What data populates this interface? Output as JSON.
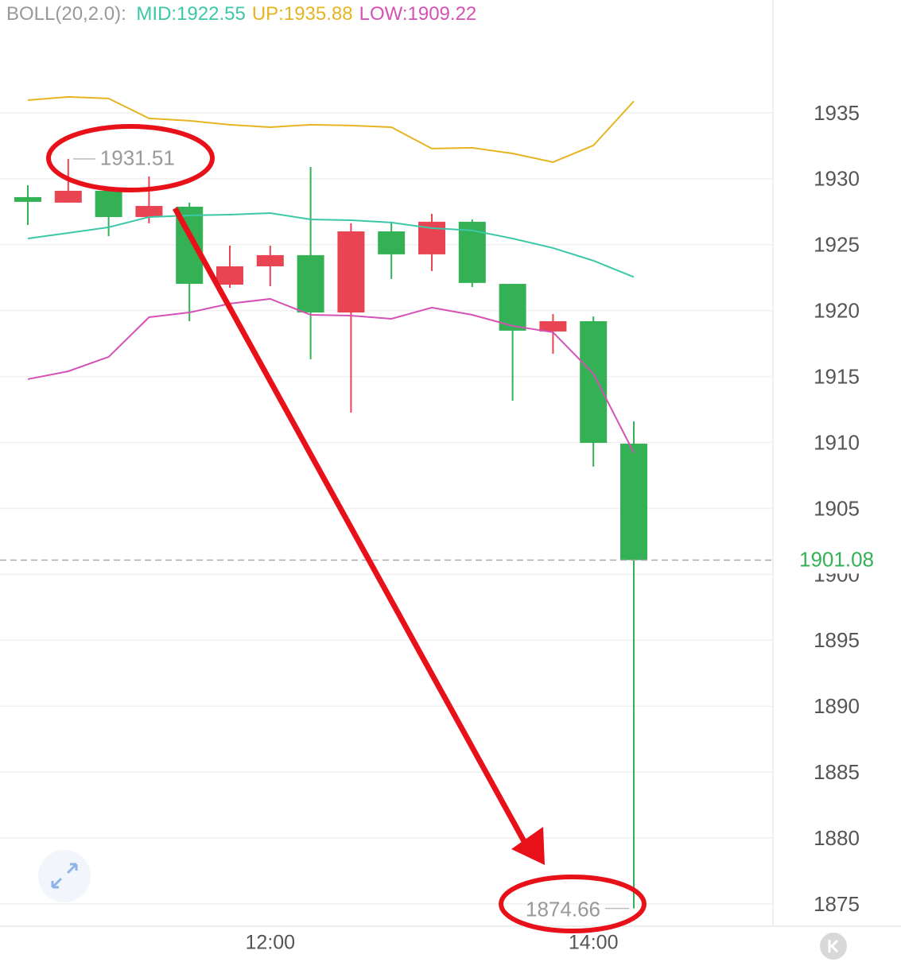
{
  "chart_data": {
    "type": "candlestick",
    "indicator_label": "BOLL(20,2.0):",
    "categories": [
      null,
      null,
      null,
      null,
      null,
      null,
      "12:00",
      null,
      null,
      null,
      null,
      null,
      null,
      null,
      "14:00",
      null
    ],
    "open": [
      1928.61,
      1928.19,
      1929.09,
      1927.1,
      1927.88,
      1921.97,
      1923.36,
      1924.21,
      1919.86,
      1926.01,
      1924.27,
      1926.74,
      1922.03,
      1918.42,
      1919.2,
      1909.91
    ],
    "high": [
      1929.51,
      1931.51,
      1929.2,
      1930.18,
      1928.19,
      1924.93,
      1924.93,
      1930.9,
      1926.62,
      1926.74,
      1927.34,
      1926.92,
      1922.03,
      1919.74,
      1919.56,
      1911.6
    ],
    "low": [
      1926.5,
      1928.19,
      1925.65,
      1926.62,
      1919.2,
      1921.73,
      1921.85,
      1916.31,
      1912.27,
      1922.4,
      1923.0,
      1921.79,
      1913.17,
      1916.73,
      1908.17,
      1874.66
    ],
    "close": [
      1928.25,
      1929.09,
      1927.1,
      1927.94,
      1922.03,
      1923.36,
      1924.21,
      1919.86,
      1926.01,
      1924.27,
      1926.74,
      1922.1,
      1918.48,
      1919.2,
      1909.97,
      1901.08
    ],
    "up_color": "#e84451",
    "down_color": "#34b155",
    "overlays": [
      {
        "name": "MID:1922.55",
        "color": "#3cc8a8",
        "values": [
          1925.47,
          1925.89,
          1926.32,
          1927.1,
          1927.22,
          1927.28,
          1927.4,
          1926.92,
          1926.86,
          1926.68,
          1926.26,
          1926.08,
          1925.47,
          1924.75,
          1923.79,
          1922.55
        ]
      },
      {
        "name": "UP:1935.88",
        "color": "#e6b422",
        "values": [
          1935.96,
          1936.21,
          1936.09,
          1934.58,
          1934.4,
          1934.1,
          1933.91,
          1934.1,
          1934.04,
          1933.91,
          1932.29,
          1932.35,
          1931.92,
          1931.26,
          1932.53,
          1935.88
        ]
      },
      {
        "name": "LOW:1909.22",
        "color": "#d452b6",
        "values": [
          1914.8,
          1915.4,
          1916.49,
          1919.5,
          1919.86,
          1920.53,
          1920.89,
          1919.68,
          1919.62,
          1919.38,
          1920.23,
          1919.68,
          1918.84,
          1918.36,
          1915.22,
          1909.22
        ]
      }
    ],
    "ylim": [
      1873.31,
      1943.56
    ],
    "yticks": [
      1875,
      1880,
      1885,
      1890,
      1895,
      1900,
      1905,
      1910,
      1915,
      1920,
      1925,
      1930,
      1935
    ],
    "grid": true
  }
}
